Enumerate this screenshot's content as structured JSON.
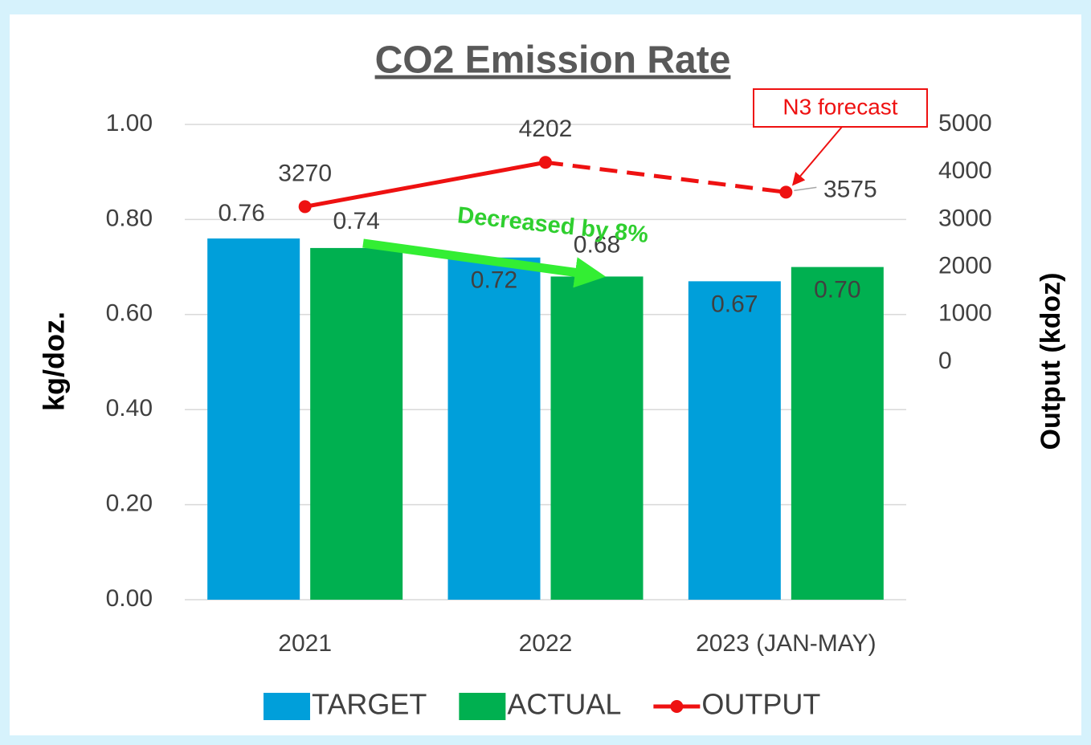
{
  "chart_data": {
    "type": "bar",
    "title": "CO2 Emission Rate",
    "categories": [
      "2021",
      "2022",
      "2023 (JAN-MAY)"
    ],
    "series": [
      {
        "name": "TARGET",
        "color": "#009fda",
        "values": [
          0.76,
          0.72,
          0.67
        ]
      },
      {
        "name": "ACTUAL",
        "color": "#00b050",
        "values": [
          0.74,
          0.68,
          0.7
        ],
        "value_labels": [
          "0.74",
          "0.68",
          "0.70"
        ]
      },
      {
        "name": "OUTPUT",
        "type": "line",
        "axis": "y2",
        "color": "#ee1111",
        "values": [
          3270,
          4202,
          3575
        ]
      }
    ],
    "ylabel": "kg/doz.",
    "y2label": "Output (kdoz)",
    "ylim": [
      0,
      1
    ],
    "yticks": [
      {
        "value": 0,
        "label": "0.00"
      },
      {
        "value": 0.2,
        "label": "0.20"
      },
      {
        "value": 0.4,
        "label": "0.40"
      },
      {
        "value": 0.6,
        "label": "0.60"
      },
      {
        "value": 0.8,
        "label": "0.80"
      },
      {
        "value": 1,
        "label": "1.00"
      }
    ],
    "y2lim": [
      -5000,
      5000
    ],
    "y2ticks": [
      0,
      1000,
      2000,
      3000,
      4000,
      5000
    ],
    "grid": true,
    "legend": "bottom",
    "annotations": [
      "Decreased by 8%",
      "N3 forecast"
    ]
  }
}
